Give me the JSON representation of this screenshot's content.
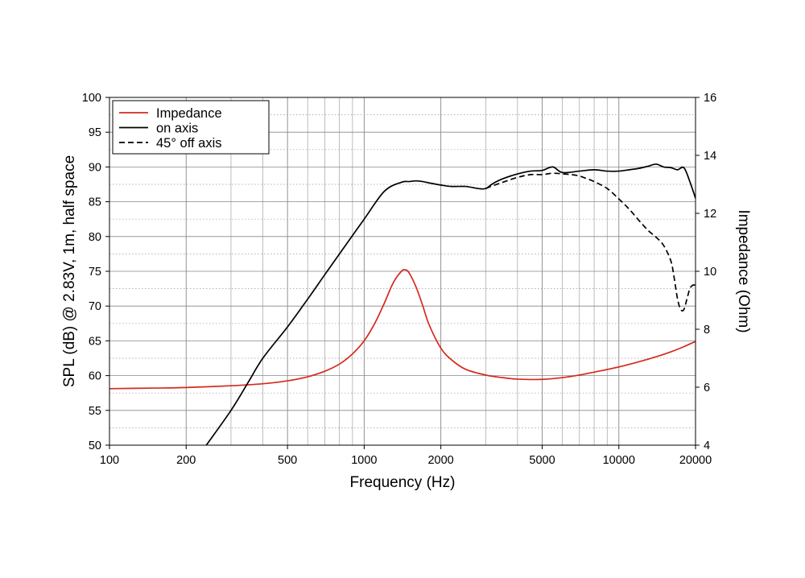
{
  "chart_data": {
    "type": "line",
    "x_scale": "log",
    "xlabel": "Frequency (Hz)",
    "ylabel_left": "SPL (dB) @ 2.83V, 1m, half space",
    "ylabel_right": "Impedance (Ohm)",
    "xlim": [
      100,
      20000
    ],
    "ylim_left": [
      50,
      100
    ],
    "ylim_right": [
      4,
      16
    ],
    "x_ticks": [
      100,
      200,
      500,
      1000,
      2000,
      5000,
      10000,
      20000
    ],
    "x_tick_labels": [
      "100",
      "200",
      "500",
      "1000",
      "2000",
      "5000",
      "10000",
      "20000"
    ],
    "y_left_ticks": [
      50,
      55,
      60,
      65,
      70,
      75,
      80,
      85,
      90,
      95,
      100
    ],
    "y_left_tick_labels": [
      "50",
      "55",
      "60",
      "65",
      "70",
      "75",
      "80",
      "85",
      "90",
      "95",
      "100"
    ],
    "y_right_ticks": [
      4,
      6,
      8,
      10,
      12,
      14,
      16
    ],
    "y_right_tick_labels": [
      "4",
      "6",
      "8",
      "10",
      "12",
      "14",
      "16"
    ],
    "grid": true,
    "legend_position": "top-left",
    "series": [
      {
        "name": "Impedance",
        "axis": "right",
        "color": "#d42a1e",
        "dash": "solid",
        "x": [
          100,
          150,
          200,
          300,
          400,
          500,
          600,
          700,
          800,
          900,
          1000,
          1100,
          1200,
          1300,
          1400,
          1450,
          1500,
          1600,
          1700,
          1800,
          2000,
          2200,
          2500,
          3000,
          3500,
          4000,
          5000,
          6000,
          7000,
          8000,
          10000,
          12000,
          14000,
          16000,
          18000,
          20000
        ],
        "y": [
          5.95,
          5.97,
          5.99,
          6.05,
          6.12,
          6.22,
          6.36,
          6.55,
          6.8,
          7.15,
          7.6,
          8.2,
          8.9,
          9.6,
          10.0,
          10.05,
          9.95,
          9.45,
          8.8,
          8.15,
          7.35,
          6.95,
          6.62,
          6.42,
          6.33,
          6.28,
          6.27,
          6.33,
          6.42,
          6.52,
          6.7,
          6.88,
          7.05,
          7.22,
          7.4,
          7.58
        ]
      },
      {
        "name": "on axis",
        "axis": "left",
        "color": "#000000",
        "dash": "solid",
        "x": [
          240,
          300,
          350,
          400,
          500,
          600,
          700,
          800,
          1000,
          1200,
          1400,
          1500,
          1600,
          1700,
          1800,
          2000,
          2200,
          2500,
          2800,
          3000,
          3200,
          3500,
          4000,
          4500,
          5000,
          5500,
          6000,
          7000,
          8000,
          9000,
          10000,
          11000,
          12000,
          13000,
          14000,
          15000,
          16000,
          17000,
          18000,
          19000,
          20000
        ],
        "y": [
          50,
          55,
          59,
          62.5,
          67,
          71,
          74.5,
          77.5,
          82.5,
          86.5,
          87.8,
          87.9,
          88.0,
          87.9,
          87.7,
          87.4,
          87.2,
          87.2,
          86.9,
          86.9,
          87.6,
          88.3,
          89.0,
          89.4,
          89.5,
          90.0,
          89.2,
          89.4,
          89.6,
          89.4,
          89.4,
          89.6,
          89.8,
          90.1,
          90.4,
          90.0,
          89.9,
          89.6,
          89.9,
          87.9,
          85.5
        ]
      },
      {
        "name": "45° off axis",
        "axis": "left",
        "color": "#000000",
        "dash": "dashed",
        "x": [
          3000,
          3200,
          3500,
          4000,
          4500,
          5000,
          5500,
          6000,
          6500,
          7000,
          7500,
          8000,
          9000,
          10000,
          11000,
          12000,
          13000,
          14000,
          15000,
          16000,
          16500,
          17000,
          17500,
          18000,
          18500,
          19000,
          19500,
          20000
        ],
        "y": [
          86.9,
          87.3,
          87.8,
          88.5,
          88.9,
          88.9,
          89.1,
          89.0,
          88.9,
          88.7,
          88.3,
          87.9,
          86.9,
          85.4,
          83.9,
          82.3,
          80.9,
          79.9,
          78.7,
          76.5,
          74.0,
          71.0,
          69.5,
          69.5,
          71.0,
          72.5,
          73.0,
          73.0
        ]
      }
    ]
  }
}
